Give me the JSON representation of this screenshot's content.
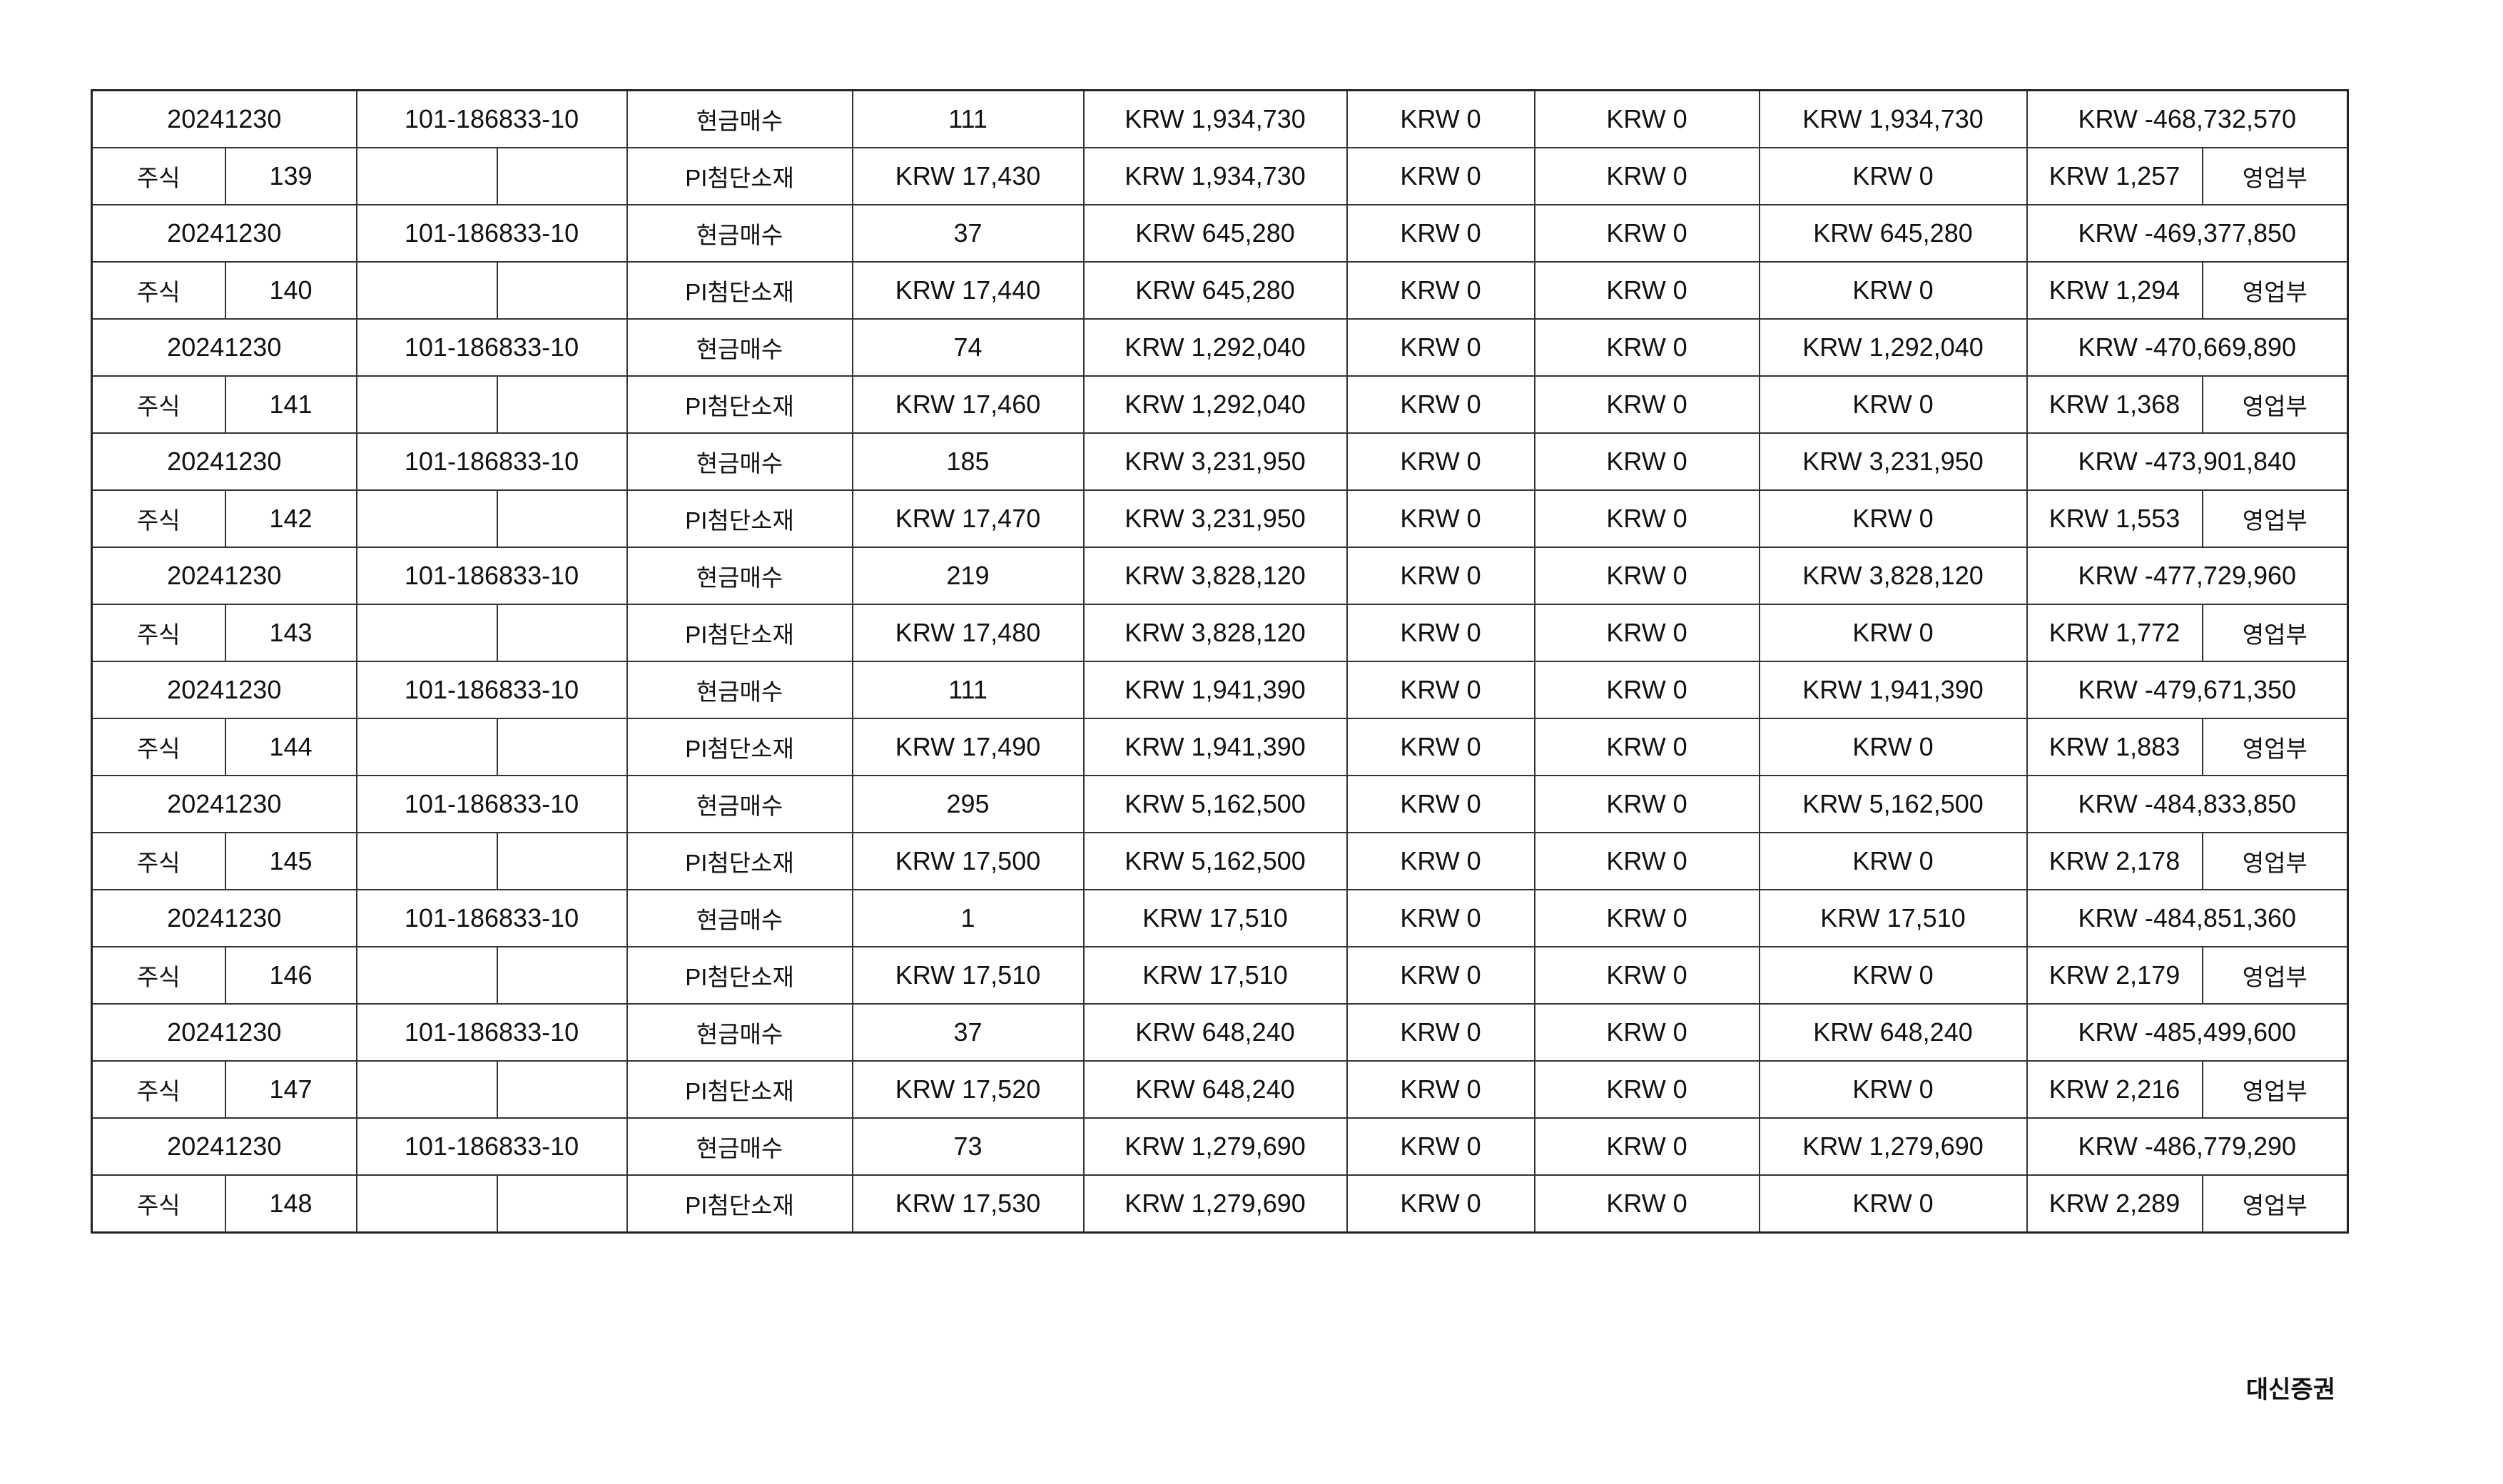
{
  "records": [
    {
      "date": "20241230",
      "account": "101-186833-10",
      "type": "현금매수",
      "qty": "111",
      "amount": "KRW 1,934,730",
      "col3": "KRW 0",
      "col4": "KRW 0",
      "settle": "KRW 1,934,730",
      "balance": "KRW -468,732,570",
      "category": "주식",
      "seq": "139",
      "name": "PI첨단소재",
      "price": "KRW 17,430",
      "amount2": "KRW 1,934,730",
      "col3b": "KRW 0",
      "col4b": "KRW 0",
      "col5b": "KRW 0",
      "fee": "KRW 1,257",
      "branch": "영업부"
    },
    {
      "date": "20241230",
      "account": "101-186833-10",
      "type": "현금매수",
      "qty": "37",
      "amount": "KRW 645,280",
      "col3": "KRW 0",
      "col4": "KRW 0",
      "settle": "KRW 645,280",
      "balance": "KRW -469,377,850",
      "category": "주식",
      "seq": "140",
      "name": "PI첨단소재",
      "price": "KRW 17,440",
      "amount2": "KRW 645,280",
      "col3b": "KRW 0",
      "col4b": "KRW 0",
      "col5b": "KRW 0",
      "fee": "KRW 1,294",
      "branch": "영업부"
    },
    {
      "date": "20241230",
      "account": "101-186833-10",
      "type": "현금매수",
      "qty": "74",
      "amount": "KRW 1,292,040",
      "col3": "KRW 0",
      "col4": "KRW 0",
      "settle": "KRW 1,292,040",
      "balance": "KRW -470,669,890",
      "category": "주식",
      "seq": "141",
      "name": "PI첨단소재",
      "price": "KRW 17,460",
      "amount2": "KRW 1,292,040",
      "col3b": "KRW 0",
      "col4b": "KRW 0",
      "col5b": "KRW 0",
      "fee": "KRW 1,368",
      "branch": "영업부"
    },
    {
      "date": "20241230",
      "account": "101-186833-10",
      "type": "현금매수",
      "qty": "185",
      "amount": "KRW 3,231,950",
      "col3": "KRW 0",
      "col4": "KRW 0",
      "settle": "KRW 3,231,950",
      "balance": "KRW -473,901,840",
      "category": "주식",
      "seq": "142",
      "name": "PI첨단소재",
      "price": "KRW 17,470",
      "amount2": "KRW 3,231,950",
      "col3b": "KRW 0",
      "col4b": "KRW 0",
      "col5b": "KRW 0",
      "fee": "KRW 1,553",
      "branch": "영업부"
    },
    {
      "date": "20241230",
      "account": "101-186833-10",
      "type": "현금매수",
      "qty": "219",
      "amount": "KRW 3,828,120",
      "col3": "KRW 0",
      "col4": "KRW 0",
      "settle": "KRW 3,828,120",
      "balance": "KRW -477,729,960",
      "category": "주식",
      "seq": "143",
      "name": "PI첨단소재",
      "price": "KRW 17,480",
      "amount2": "KRW 3,828,120",
      "col3b": "KRW 0",
      "col4b": "KRW 0",
      "col5b": "KRW 0",
      "fee": "KRW 1,772",
      "branch": "영업부"
    },
    {
      "date": "20241230",
      "account": "101-186833-10",
      "type": "현금매수",
      "qty": "111",
      "amount": "KRW 1,941,390",
      "col3": "KRW 0",
      "col4": "KRW 0",
      "settle": "KRW 1,941,390",
      "balance": "KRW -479,671,350",
      "category": "주식",
      "seq": "144",
      "name": "PI첨단소재",
      "price": "KRW 17,490",
      "amount2": "KRW 1,941,390",
      "col3b": "KRW 0",
      "col4b": "KRW 0",
      "col5b": "KRW 0",
      "fee": "KRW 1,883",
      "branch": "영업부"
    },
    {
      "date": "20241230",
      "account": "101-186833-10",
      "type": "현금매수",
      "qty": "295",
      "amount": "KRW 5,162,500",
      "col3": "KRW 0",
      "col4": "KRW 0",
      "settle": "KRW 5,162,500",
      "balance": "KRW -484,833,850",
      "category": "주식",
      "seq": "145",
      "name": "PI첨단소재",
      "price": "KRW 17,500",
      "amount2": "KRW 5,162,500",
      "col3b": "KRW 0",
      "col4b": "KRW 0",
      "col5b": "KRW 0",
      "fee": "KRW 2,178",
      "branch": "영업부"
    },
    {
      "date": "20241230",
      "account": "101-186833-10",
      "type": "현금매수",
      "qty": "1",
      "amount": "KRW 17,510",
      "col3": "KRW 0",
      "col4": "KRW 0",
      "settle": "KRW 17,510",
      "balance": "KRW -484,851,360",
      "category": "주식",
      "seq": "146",
      "name": "PI첨단소재",
      "price": "KRW 17,510",
      "amount2": "KRW 17,510",
      "col3b": "KRW 0",
      "col4b": "KRW 0",
      "col5b": "KRW 0",
      "fee": "KRW 2,179",
      "branch": "영업부"
    },
    {
      "date": "20241230",
      "account": "101-186833-10",
      "type": "현금매수",
      "qty": "37",
      "amount": "KRW 648,240",
      "col3": "KRW 0",
      "col4": "KRW 0",
      "settle": "KRW 648,240",
      "balance": "KRW -485,499,600",
      "category": "주식",
      "seq": "147",
      "name": "PI첨단소재",
      "price": "KRW 17,520",
      "amount2": "KRW 648,240",
      "col3b": "KRW 0",
      "col4b": "KRW 0",
      "col5b": "KRW 0",
      "fee": "KRW 2,216",
      "branch": "영업부"
    },
    {
      "date": "20241230",
      "account": "101-186833-10",
      "type": "현금매수",
      "qty": "73",
      "amount": "KRW 1,279,690",
      "col3": "KRW 0",
      "col4": "KRW 0",
      "settle": "KRW 1,279,690",
      "balance": "KRW -486,779,290",
      "category": "주식",
      "seq": "148",
      "name": "PI첨단소재",
      "price": "KRW 17,530",
      "amount2": "KRW 1,279,690",
      "col3b": "KRW 0",
      "col4b": "KRW 0",
      "col5b": "KRW 0",
      "fee": "KRW 2,289",
      "branch": "영업부"
    }
  ],
  "footer": {
    "company": "대신증권"
  }
}
